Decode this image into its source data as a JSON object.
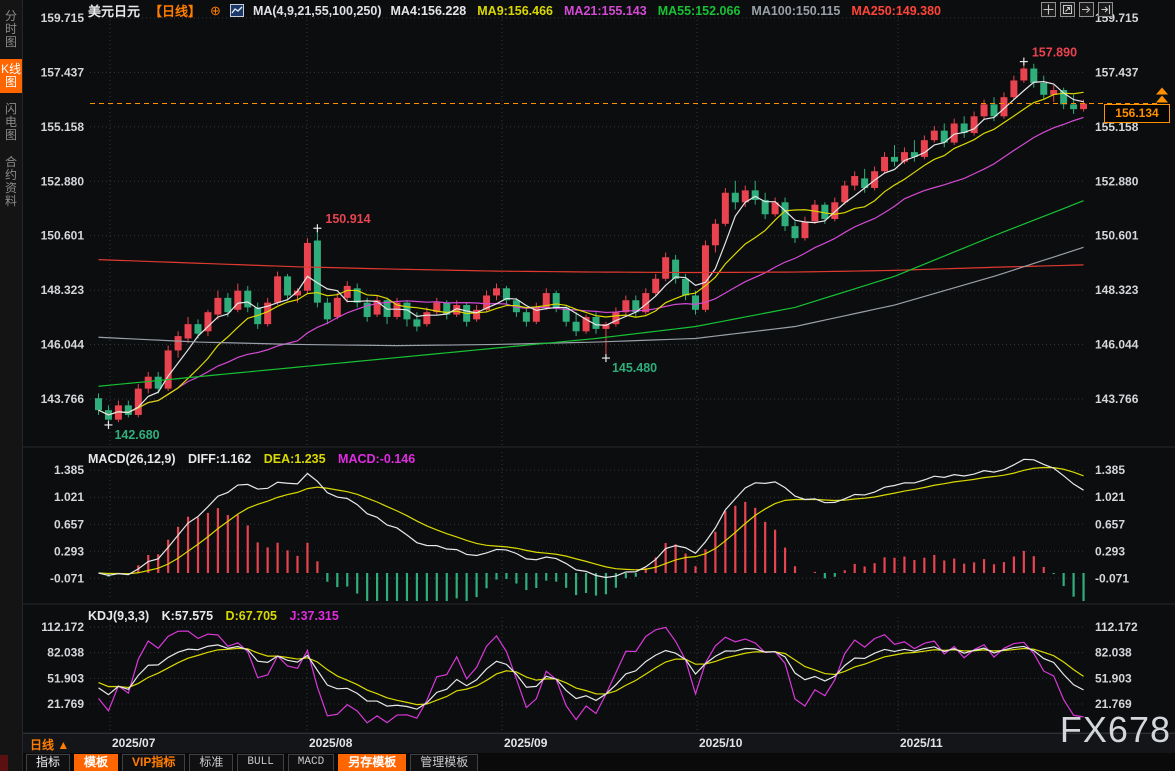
{
  "window": {
    "watermark": "FX678"
  },
  "sidebar": {
    "items": [
      {
        "label": "分时图",
        "active": false
      },
      {
        "label": "K线图",
        "active": true
      },
      {
        "label": "闪电图",
        "active": false
      },
      {
        "label": "合约资料",
        "active": false
      }
    ]
  },
  "header": {
    "symbol": "美元日元",
    "period": "【日线】",
    "add_indicator_icon": "⊕",
    "ma_group_label": "MA(4,9,21,55,100,250)",
    "ma_values": [
      {
        "label": "MA4:156.228",
        "color": "#e4e6e8"
      },
      {
        "label": "MA9:156.466",
        "color": "#d9d900"
      },
      {
        "label": "MA21:155.143",
        "color": "#d44ad4"
      },
      {
        "label": "MA55:152.066",
        "color": "#17c234"
      },
      {
        "label": "MA100:150.115",
        "color": "#9aa0a8"
      },
      {
        "label": "MA250:149.380",
        "color": "#ff4438"
      }
    ]
  },
  "toolbar": {
    "icons": [
      "crosshair-icon",
      "fit-chart-icon",
      "scroll-right-icon",
      "snap-right-icon"
    ]
  },
  "macd": {
    "label": "MACD(26,12,9)",
    "diff": "DIFF:1.162",
    "dea": "DEA:1.235",
    "macd": "MACD:-0.146",
    "axis": [
      1.385,
      1.021,
      0.657,
      0.293,
      -0.071
    ]
  },
  "kdj": {
    "label": "KDJ(9,3,3)",
    "k": "K:57.575",
    "d": "D:67.705",
    "j": "J:37.315",
    "axis": [
      112.172,
      82.038,
      51.903,
      21.769
    ]
  },
  "xaxis": {
    "period_label": "日线",
    "period_arrow": "▲",
    "dates": [
      "2025/07",
      "2025/08",
      "2025/09",
      "2025/10",
      "2025/11"
    ]
  },
  "tabs": [
    {
      "label": "指标",
      "style": "first"
    },
    {
      "label": "模板",
      "style": "active"
    },
    {
      "label": "VIP指标",
      "style": "vip"
    },
    {
      "label": "标准",
      "style": ""
    },
    {
      "label": "BULL",
      "style": "mono"
    },
    {
      "label": "MACD",
      "style": "mono"
    },
    {
      "label": "另存模板",
      "style": "active"
    },
    {
      "label": "管理模板",
      "style": ""
    }
  ],
  "chart_data": {
    "type": "candlestick",
    "symbol": "美元日元 (USD/JPY)",
    "interval": "日线",
    "title": "美元日元【日线】",
    "price_axis": [
      159.715,
      157.437,
      155.158,
      152.88,
      150.601,
      148.323,
      146.044,
      143.766
    ],
    "x_categories": [
      "2025/07",
      "2025/08",
      "2025/09",
      "2025/10",
      "2025/11"
    ],
    "current_price": "156.134",
    "colors": {
      "up": "#e8434e",
      "down": "#2fae7c",
      "ma4": "#e4e6e8",
      "ma9": "#d9d900",
      "ma21": "#d44ad4",
      "ma55": "#17c234",
      "ma100": "#9aa0a8",
      "ma250": "#e03a30",
      "price_line": "#ff9000",
      "grid": "#35373d"
    },
    "annotations": [
      {
        "text": "157.890",
        "candle": 93,
        "at": "high",
        "color": "#e8434e"
      },
      {
        "text": "150.914",
        "candle": 22,
        "at": "high",
        "color": "#e8434e"
      },
      {
        "text": "145.480",
        "candle": 51,
        "at": "low",
        "color": "#2fae7c"
      },
      {
        "text": "142.680",
        "candle": 1,
        "at": "low",
        "color": "#2fae7c"
      }
    ],
    "ma_overlay_controls": {
      "indices": [
        0,
        10,
        20,
        30,
        40,
        50,
        60,
        70,
        80,
        90,
        99
      ],
      "ma55": [
        144.3,
        144.7,
        145.1,
        145.5,
        145.9,
        146.3,
        146.8,
        147.6,
        148.9,
        150.6,
        152.066
      ],
      "ma100": [
        146.35,
        146.15,
        146.05,
        146.0,
        146.05,
        146.15,
        146.3,
        146.8,
        147.7,
        148.9,
        150.115
      ],
      "ma250": [
        149.6,
        149.45,
        149.3,
        149.2,
        149.12,
        149.08,
        149.06,
        149.08,
        149.15,
        149.28,
        149.38
      ]
    },
    "candles_ohlc": [
      [
        143.8,
        144.0,
        143.1,
        143.3
      ],
      [
        143.3,
        143.5,
        142.68,
        142.9
      ],
      [
        142.9,
        143.7,
        142.8,
        143.5
      ],
      [
        143.5,
        143.7,
        143.0,
        143.1
      ],
      [
        143.1,
        144.4,
        143.0,
        144.2
      ],
      [
        144.2,
        144.9,
        144.0,
        144.7
      ],
      [
        144.7,
        144.9,
        144.0,
        144.2
      ],
      [
        144.2,
        146.0,
        144.1,
        145.8
      ],
      [
        145.8,
        146.6,
        145.5,
        146.4
      ],
      [
        146.3,
        147.2,
        146.1,
        146.9
      ],
      [
        146.9,
        147.1,
        146.3,
        146.5
      ],
      [
        146.6,
        147.5,
        146.4,
        147.4
      ],
      [
        147.3,
        148.3,
        147.1,
        148.0
      ],
      [
        148.0,
        148.2,
        147.2,
        147.4
      ],
      [
        147.5,
        148.6,
        147.4,
        148.3
      ],
      [
        148.3,
        148.5,
        147.4,
        147.6
      ],
      [
        147.6,
        147.8,
        146.7,
        146.9
      ],
      [
        146.9,
        148.0,
        146.8,
        147.8
      ],
      [
        147.8,
        149.1,
        147.7,
        148.9
      ],
      [
        148.9,
        149.0,
        147.9,
        148.1
      ],
      [
        148.1,
        148.4,
        147.8,
        148.3
      ],
      [
        148.3,
        150.5,
        148.2,
        150.3
      ],
      [
        150.4,
        150.914,
        147.6,
        147.8
      ],
      [
        147.8,
        148.0,
        146.9,
        147.1
      ],
      [
        147.2,
        148.2,
        147.1,
        148.0
      ],
      [
        148.0,
        148.7,
        147.8,
        148.5
      ],
      [
        148.4,
        148.6,
        147.6,
        147.8
      ],
      [
        147.8,
        148.0,
        147.0,
        147.2
      ],
      [
        147.3,
        148.1,
        147.2,
        147.9
      ],
      [
        147.9,
        148.0,
        146.9,
        147.2
      ],
      [
        147.2,
        148.0,
        147.1,
        147.8
      ],
      [
        147.8,
        147.9,
        146.8,
        147.1
      ],
      [
        147.1,
        147.4,
        146.6,
        146.8
      ],
      [
        146.9,
        147.6,
        146.8,
        147.4
      ],
      [
        147.4,
        148.0,
        147.3,
        147.8
      ],
      [
        147.8,
        147.9,
        147.1,
        147.3
      ],
      [
        147.3,
        147.9,
        147.2,
        147.7
      ],
      [
        147.7,
        147.8,
        146.8,
        147.0
      ],
      [
        147.1,
        147.7,
        147.0,
        147.5
      ],
      [
        147.5,
        148.3,
        147.4,
        148.1
      ],
      [
        148.1,
        148.6,
        147.9,
        148.4
      ],
      [
        148.4,
        148.5,
        147.7,
        147.9
      ],
      [
        147.9,
        148.0,
        147.2,
        147.4
      ],
      [
        147.4,
        147.6,
        146.8,
        147.0
      ],
      [
        147.0,
        147.8,
        146.9,
        147.6
      ],
      [
        147.6,
        148.4,
        147.5,
        148.2
      ],
      [
        148.2,
        148.3,
        147.4,
        147.6
      ],
      [
        147.6,
        147.7,
        146.8,
        147.0
      ],
      [
        147.0,
        147.4,
        146.4,
        146.6
      ],
      [
        146.6,
        147.3,
        146.5,
        147.2
      ],
      [
        147.2,
        147.4,
        146.5,
        146.7
      ],
      [
        146.7,
        147.0,
        145.48,
        146.9
      ],
      [
        146.9,
        147.6,
        146.8,
        147.4
      ],
      [
        147.4,
        148.1,
        147.3,
        147.9
      ],
      [
        147.9,
        148.1,
        147.2,
        147.4
      ],
      [
        147.4,
        148.4,
        147.3,
        148.2
      ],
      [
        148.2,
        149.0,
        148.1,
        148.8
      ],
      [
        148.8,
        149.9,
        148.7,
        149.7
      ],
      [
        149.6,
        149.8,
        148.6,
        148.8
      ],
      [
        148.8,
        149.0,
        147.9,
        148.1
      ],
      [
        148.1,
        148.3,
        147.3,
        147.5
      ],
      [
        147.5,
        150.4,
        147.4,
        150.2
      ],
      [
        150.2,
        151.3,
        149.9,
        151.1
      ],
      [
        151.1,
        152.6,
        151.0,
        152.4
      ],
      [
        152.4,
        152.9,
        151.7,
        152.0
      ],
      [
        152.0,
        152.7,
        151.8,
        152.5
      ],
      [
        152.5,
        152.9,
        151.9,
        152.1
      ],
      [
        152.1,
        152.4,
        151.3,
        151.5
      ],
      [
        151.5,
        152.2,
        151.4,
        152.0
      ],
      [
        152.0,
        152.2,
        150.8,
        151.0
      ],
      [
        151.0,
        151.2,
        150.3,
        150.5
      ],
      [
        150.5,
        151.4,
        150.4,
        151.2
      ],
      [
        151.2,
        152.1,
        151.1,
        151.9
      ],
      [
        151.9,
        152.0,
        151.1,
        151.3
      ],
      [
        151.3,
        152.2,
        151.2,
        152.0
      ],
      [
        152.0,
        152.9,
        151.9,
        152.7
      ],
      [
        152.7,
        153.3,
        152.5,
        153.1
      ],
      [
        153.0,
        153.4,
        152.4,
        152.6
      ],
      [
        152.6,
        153.5,
        152.5,
        153.3
      ],
      [
        153.3,
        154.1,
        153.2,
        153.9
      ],
      [
        153.9,
        154.4,
        153.5,
        153.7
      ],
      [
        153.7,
        154.3,
        153.6,
        154.1
      ],
      [
        154.1,
        154.6,
        153.7,
        153.9
      ],
      [
        153.9,
        154.8,
        153.8,
        154.6
      ],
      [
        154.6,
        155.2,
        154.5,
        155.0
      ],
      [
        155.0,
        155.3,
        154.3,
        154.5
      ],
      [
        154.5,
        155.5,
        154.4,
        155.3
      ],
      [
        155.3,
        155.6,
        154.7,
        154.9
      ],
      [
        154.9,
        155.8,
        154.8,
        155.6
      ],
      [
        155.6,
        156.3,
        155.5,
        156.1
      ],
      [
        156.1,
        156.4,
        155.4,
        155.6
      ],
      [
        155.6,
        156.6,
        155.5,
        156.4
      ],
      [
        156.4,
        157.3,
        156.3,
        157.1
      ],
      [
        157.1,
        157.89,
        157.0,
        157.6
      ],
      [
        157.6,
        157.8,
        156.8,
        157.0
      ],
      [
        157.0,
        157.3,
        156.3,
        156.5
      ],
      [
        156.5,
        156.9,
        156.2,
        156.7
      ],
      [
        156.7,
        156.8,
        155.9,
        156.1
      ],
      [
        156.1,
        156.5,
        155.7,
        155.9
      ],
      [
        155.9,
        156.3,
        155.8,
        156.134
      ]
    ]
  }
}
